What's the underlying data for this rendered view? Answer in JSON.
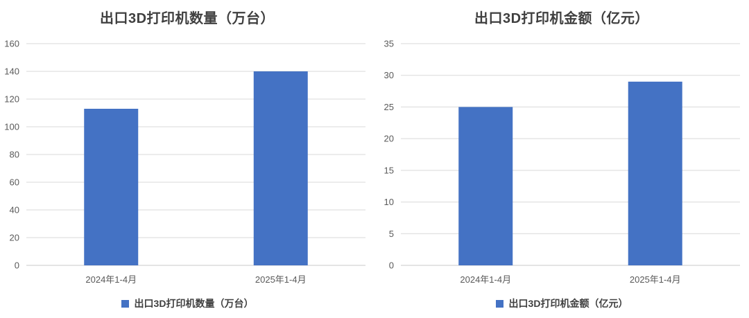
{
  "colors": {
    "bar": "#4472C4",
    "gridline": "#D9D9D9",
    "baseline": "#C9C9C9",
    "axis_text": "#595959",
    "title_text": "#3F3F3F",
    "background": "#FFFFFF"
  },
  "chart_data": [
    {
      "type": "bar",
      "title": "出口3D打印机数量（万台）",
      "legend": "出口3D打印机数量（万台）",
      "categories": [
        "2024年1-4月",
        "2025年1-4月"
      ],
      "values": [
        113,
        140
      ],
      "xlabel": "",
      "ylabel": "",
      "ylim": [
        0,
        160
      ],
      "yticks": [
        0,
        20,
        40,
        60,
        80,
        100,
        120,
        140,
        160
      ],
      "grid": true,
      "legend_position": "bottom",
      "bar_color": "#4472C4"
    },
    {
      "type": "bar",
      "title": "出口3D打印机金额（亿元）",
      "legend": "出口3D打印机金额（亿元）",
      "categories": [
        "2024年1-4月",
        "2025年1-4月"
      ],
      "values": [
        25,
        29
      ],
      "xlabel": "",
      "ylabel": "",
      "ylim": [
        0,
        35
      ],
      "yticks": [
        0,
        5,
        10,
        15,
        20,
        25,
        30,
        35
      ],
      "grid": true,
      "legend_position": "bottom",
      "bar_color": "#4472C4"
    }
  ]
}
